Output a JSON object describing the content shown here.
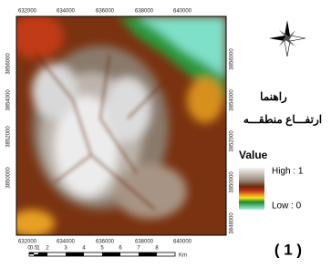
{
  "map": {
    "top_ticks": [
      "632000",
      "634000",
      "636000",
      "638000",
      "640000"
    ],
    "bottom_ticks": [
      "632000",
      "634000",
      "636000",
      "638000",
      "640000"
    ],
    "left_ticks": [
      "3856000",
      "3854000",
      "3852000",
      "3850000"
    ],
    "right_ticks": [
      "3856000",
      "3854000",
      "3852000",
      "3850000",
      "3848000"
    ],
    "scale_labels": [
      "0",
      "0.5",
      "1",
      "2",
      "3",
      "4",
      "5",
      "6",
      "7",
      "8"
    ],
    "scale_unit": "Km"
  },
  "legend": {
    "title": "راهنما",
    "subtitle": "ارتفـــاع منطقـــه",
    "value_label": "Value",
    "high": "High : 1",
    "low": "Low : 0"
  },
  "figure_label": "( 1 )"
}
